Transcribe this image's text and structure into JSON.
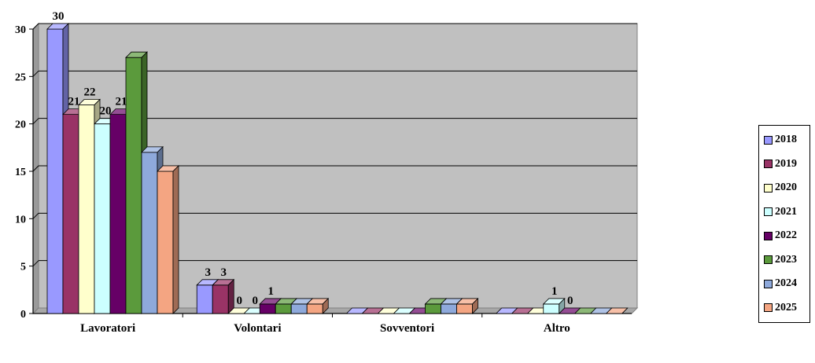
{
  "chart_data": {
    "type": "bar",
    "categories": [
      "Lavoratori",
      "Volontari",
      "Sovventori",
      "Altro"
    ],
    "series": [
      {
        "name": "2018",
        "color": "#9999ff",
        "values": [
          30,
          3,
          0,
          0
        ],
        "labels": [
          "30",
          "3",
          "",
          ""
        ]
      },
      {
        "name": "2019",
        "color": "#993366",
        "values": [
          21,
          3,
          0,
          0
        ],
        "labels": [
          "21",
          "3",
          "",
          ""
        ]
      },
      {
        "name": "2020",
        "color": "#ffffcc",
        "values": [
          22,
          0,
          0,
          0
        ],
        "labels": [
          "22",
          "0",
          "",
          ""
        ]
      },
      {
        "name": "2021",
        "color": "#ccffff",
        "values": [
          20,
          0,
          0,
          1
        ],
        "labels": [
          "20",
          "0",
          "",
          "1"
        ]
      },
      {
        "name": "2022",
        "color": "#660066",
        "values": [
          21,
          1,
          0,
          0
        ],
        "labels": [
          "21",
          "1",
          "",
          "0"
        ]
      },
      {
        "name": "2023",
        "color": "#5b9a3c",
        "values": [
          27,
          1,
          1,
          0
        ],
        "labels": [
          "",
          "",
          "",
          ""
        ]
      },
      {
        "name": "2024",
        "color": "#8ea9db",
        "values": [
          17,
          1,
          1,
          0
        ],
        "labels": [
          "",
          "",
          "",
          ""
        ]
      },
      {
        "name": "2025",
        "color": "#f4a582",
        "values": [
          15,
          1,
          1,
          0
        ],
        "labels": [
          "",
          "",
          "",
          ""
        ]
      }
    ],
    "yticks": [
      "0",
      "5",
      "10",
      "15",
      "20",
      "25",
      "30"
    ],
    "ylim": [
      0,
      30
    ],
    "grid": true,
    "legend_position": "right"
  }
}
